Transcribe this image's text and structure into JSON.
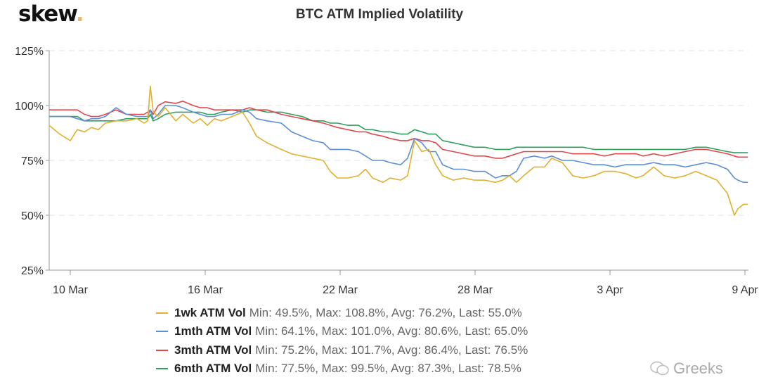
{
  "logo": {
    "text": "skew",
    "dot": "."
  },
  "watermark": {
    "text": "Greeks",
    "icon": "wechat-icon"
  },
  "chart_data": {
    "type": "line",
    "title": "BTC ATM Implied Volatility",
    "xlabel": "",
    "ylabel": "",
    "ylim": [
      25,
      125
    ],
    "yticks": [
      {
        "value": 25,
        "label": "25%"
      },
      {
        "value": 50,
        "label": "50%"
      },
      {
        "value": 75,
        "label": "75%"
      },
      {
        "value": 100,
        "label": "100%"
      },
      {
        "value": 125,
        "label": "125%"
      }
    ],
    "xlim": [
      -0.94,
      30.2
    ],
    "xticks": [
      {
        "value": 0,
        "label": "10 Mar"
      },
      {
        "value": 6,
        "label": "16 Mar"
      },
      {
        "value": 12,
        "label": "22 Mar"
      },
      {
        "value": 18,
        "label": "28 Mar"
      },
      {
        "value": 24,
        "label": "3 Apr"
      },
      {
        "value": 30,
        "label": "9 Apr"
      }
    ],
    "grid": true,
    "legend_position": "bottom",
    "x": [
      -0.94,
      -0.47,
      0,
      0.31,
      0.63,
      0.94,
      1.25,
      1.56,
      2.03,
      2.5,
      2.97,
      3.28,
      3.44,
      3.56,
      3.69,
      3.91,
      4.22,
      4.69,
      5,
      5.47,
      5.78,
      6.09,
      6.41,
      6.72,
      7.19,
      7.66,
      7.97,
      8.28,
      8.75,
      9.38,
      9.84,
      10.31,
      10.78,
      11.25,
      11.56,
      11.88,
      12.34,
      12.81,
      13.13,
      13.44,
      13.91,
      14.22,
      14.69,
      15,
      15.31,
      15.63,
      15.94,
      16.25,
      16.56,
      17.03,
      17.5,
      17.97,
      18.44,
      18.91,
      19.22,
      19.53,
      19.84,
      20.16,
      20.63,
      21.09,
      21.41,
      21.88,
      22.34,
      22.81,
      23.28,
      23.75,
      24.22,
      24.69,
      25.16,
      25.47,
      25.94,
      26.41,
      26.88,
      27.34,
      27.81,
      28.28,
      28.75,
      29.22,
      29.53,
      29.69,
      29.94,
      30.13
    ],
    "series": [
      {
        "name": "1wk ATM Vol",
        "stats": "Min: 49.5%, Max: 108.8%, Avg: 76.2%, Last: 55.0%",
        "color": "#e0b030",
        "values": [
          91,
          87,
          84,
          89,
          88,
          90,
          89,
          92,
          93,
          93,
          94,
          92,
          93,
          108.8,
          97,
          95,
          99,
          93,
          96,
          92,
          94,
          91,
          94,
          93,
          95,
          97,
          92,
          86,
          83,
          80,
          78,
          77,
          76,
          75,
          70,
          67,
          67,
          68,
          71,
          67,
          65,
          67,
          66,
          68,
          84,
          79,
          80,
          73,
          68,
          66,
          67,
          66,
          66,
          65,
          66,
          68,
          65,
          68,
          72,
          72,
          76,
          74,
          68,
          67,
          68,
          70,
          70,
          69,
          67,
          68,
          72,
          68,
          67,
          68,
          70,
          68,
          66,
          60,
          50,
          53,
          55,
          55
        ]
      },
      {
        "name": "1mth ATM Vol",
        "stats": "Min: 64.1%, Max: 101.0%, Avg: 80.6%, Last: 65.0%",
        "color": "#5b8fd6",
        "values": [
          95,
          95,
          95,
          94,
          93,
          94,
          94,
          95,
          99,
          96,
          95,
          95,
          95,
          98,
          94,
          96,
          100,
          100,
          99,
          97,
          96,
          95,
          95,
          96,
          96,
          98,
          97,
          94,
          93,
          92,
          88,
          86,
          84,
          83,
          80,
          80,
          80,
          79,
          77,
          75,
          75,
          74,
          73,
          76,
          85,
          83,
          79,
          79,
          73,
          71,
          71,
          70,
          70,
          67,
          68,
          68,
          70,
          76,
          77,
          76,
          77,
          75,
          75,
          74,
          73,
          73,
          72,
          73,
          73,
          73,
          74,
          73,
          73,
          72,
          73,
          74,
          73,
          71,
          67,
          66,
          65,
          65
        ]
      },
      {
        "name": "3mth ATM Vol",
        "stats": "Min: 75.2%, Max: 101.7%, Avg: 86.4%, Last: 76.5%",
        "color": "#e0474c",
        "values": [
          98,
          98,
          98,
          98,
          96,
          95,
          95,
          96,
          98,
          96,
          96,
          96,
          97,
          98,
          96,
          100,
          101.7,
          101,
          102,
          100,
          99,
          99,
          98,
          98,
          98,
          98,
          99,
          98,
          98,
          96,
          95,
          94,
          93,
          92,
          91,
          90,
          89,
          88,
          88,
          87,
          86,
          85,
          84,
          84,
          85,
          84,
          84,
          83,
          80,
          79,
          78,
          77,
          77,
          76,
          76,
          77,
          78,
          79,
          79,
          79,
          79,
          79,
          78,
          78,
          78,
          77,
          78,
          78,
          78,
          77,
          78,
          77,
          78,
          79,
          80,
          80,
          79,
          78,
          77,
          76.5,
          76.5,
          76.5
        ]
      },
      {
        "name": "6mth ATM Vol",
        "stats": "Min: 77.5%, Max: 99.5%, Avg: 87.3%, Last: 78.5%",
        "color": "#2e9e5b",
        "values": [
          95,
          95,
          95,
          95,
          93,
          93,
          93,
          93,
          93,
          94,
          94,
          94,
          94,
          96,
          93,
          94,
          96,
          97,
          97,
          97,
          97,
          96,
          96,
          97,
          98,
          97,
          98,
          98,
          97,
          97,
          96,
          95,
          93,
          93,
          92,
          92,
          91,
          91,
          89,
          89,
          88,
          88,
          87,
          87,
          89,
          88,
          87,
          87,
          84,
          83,
          82,
          81,
          81,
          80,
          80,
          80,
          81,
          81,
          81,
          81,
          81,
          81,
          81,
          81,
          80,
          80,
          80,
          80,
          80,
          80,
          80,
          80,
          80,
          80,
          81,
          81,
          80,
          79,
          78.5,
          78.5,
          78.5,
          78.5
        ]
      }
    ]
  }
}
